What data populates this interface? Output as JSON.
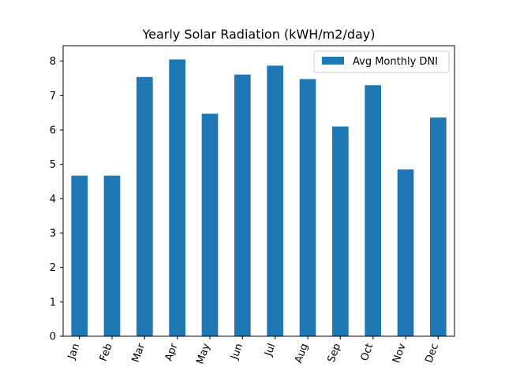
{
  "chart_data": {
    "type": "bar",
    "title": "Yearly Solar Radiation (kWH/m2/day)",
    "xlabel": "",
    "ylabel": "",
    "categories": [
      "Jan",
      "Feb",
      "Mar",
      "Apr",
      "May",
      "Jun",
      "Jul",
      "Aug",
      "Sep",
      "Oct",
      "Nov",
      "Dec"
    ],
    "series": [
      {
        "name": "Avg Monthly DNI",
        "values": [
          4.67,
          4.67,
          7.54,
          8.05,
          6.47,
          7.61,
          7.87,
          7.48,
          6.1,
          7.3,
          4.85,
          6.36
        ],
        "color": "#1f77b4"
      }
    ],
    "ylim": [
      0,
      8.45
    ],
    "yticks": [
      0,
      1,
      2,
      3,
      4,
      5,
      6,
      7,
      8
    ],
    "xtick_rotation": "rotated",
    "grid": false,
    "legend": "top-right"
  }
}
